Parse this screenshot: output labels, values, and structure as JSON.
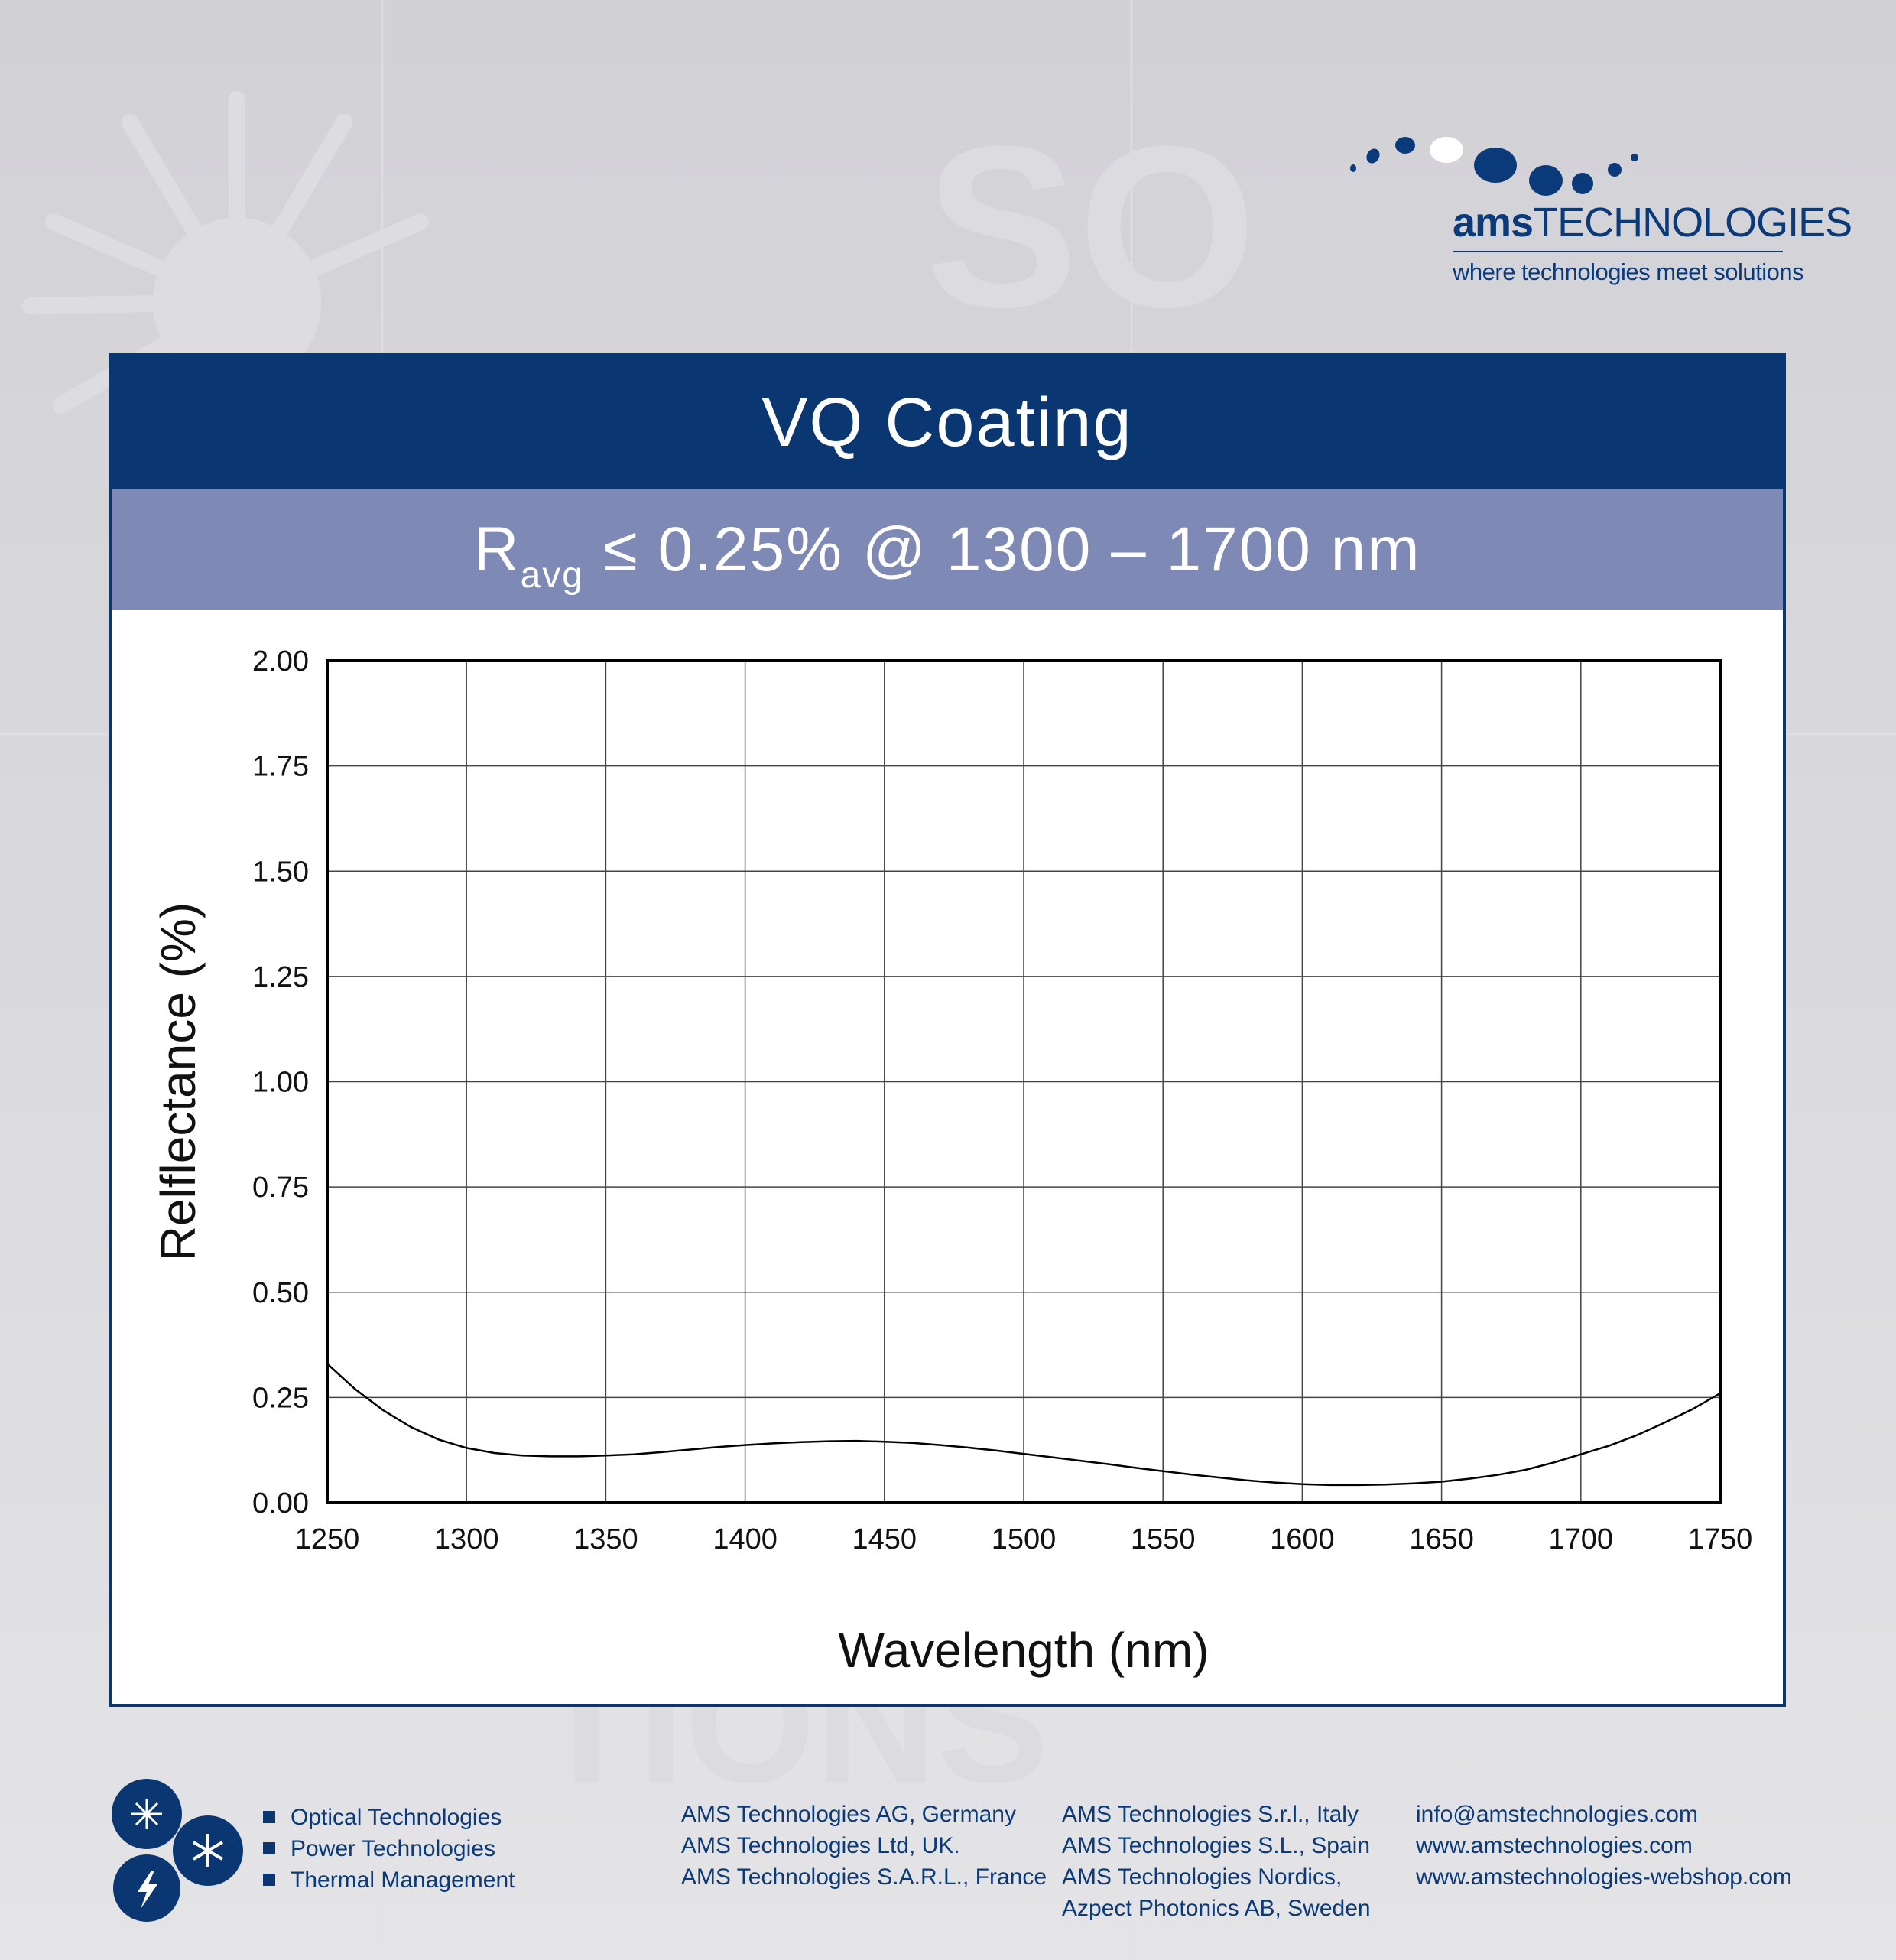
{
  "header": {
    "logo": {
      "wordmark_bold": "ams",
      "wordmark_regular": "TECHNOLOGIES",
      "tagline": "where technologies meet solutions"
    }
  },
  "panel": {
    "title": "VQ Coating",
    "subtitle": {
      "symbol": "R",
      "subscript": "avg",
      "condition": "≤ 0.25% @ 1300 – 1700 nm"
    }
  },
  "chart_data": {
    "type": "line",
    "title": "VQ Coating",
    "xlabel": "Wavelength (nm)",
    "ylabel": "Relflectance (%)",
    "xlim": [
      1250,
      1750
    ],
    "ylim": [
      0,
      2.0
    ],
    "xticks": [
      "1250",
      "1300",
      "1350",
      "1400",
      "1450",
      "1500",
      "1550",
      "1600",
      "1650",
      "1700",
      "1750"
    ],
    "yticks": [
      "0.00",
      "0.25",
      "0.50",
      "0.75",
      "1.00",
      "1.25",
      "1.50",
      "1.75",
      "2.00"
    ],
    "grid": true,
    "line_color": "#000000",
    "series": [
      {
        "x": [
          1250,
          1260,
          1270,
          1280,
          1290,
          1300,
          1310,
          1320,
          1330,
          1340,
          1350,
          1360,
          1370,
          1380,
          1390,
          1400,
          1410,
          1420,
          1430,
          1440,
          1450,
          1460,
          1470,
          1480,
          1490,
          1500,
          1510,
          1520,
          1530,
          1540,
          1550,
          1560,
          1570,
          1580,
          1590,
          1600,
          1610,
          1620,
          1630,
          1640,
          1650,
          1660,
          1670,
          1680,
          1690,
          1700,
          1710,
          1720,
          1730,
          1740,
          1750
        ],
        "y": [
          0.33,
          0.27,
          0.22,
          0.18,
          0.15,
          0.13,
          0.118,
          0.112,
          0.11,
          0.11,
          0.112,
          0.115,
          0.12,
          0.126,
          0.132,
          0.137,
          0.141,
          0.144,
          0.146,
          0.147,
          0.145,
          0.142,
          0.137,
          0.131,
          0.124,
          0.116,
          0.108,
          0.1,
          0.092,
          0.083,
          0.075,
          0.067,
          0.06,
          0.053,
          0.048,
          0.044,
          0.042,
          0.042,
          0.043,
          0.046,
          0.05,
          0.057,
          0.066,
          0.078,
          0.095,
          0.115,
          0.135,
          0.16,
          0.19,
          0.222,
          0.26
        ]
      }
    ]
  },
  "footer": {
    "segments": [
      "Optical Technologies",
      "Power Technologies",
      "Thermal Management"
    ],
    "offices_col1": [
      "AMS Technologies AG, Germany",
      "AMS Technologies Ltd, UK.",
      "AMS Technologies S.A.R.L., France"
    ],
    "offices_col2": [
      "AMS Technologies S.r.l., Italy",
      "AMS Technologies S.L., Spain",
      "AMS Technologies Nordics,",
      "Azpect Photonics AB, Sweden"
    ],
    "contact": [
      "info@amstechnologies.com",
      "www.amstechnologies.com",
      "www.amstechnologies-webshop.com"
    ]
  }
}
